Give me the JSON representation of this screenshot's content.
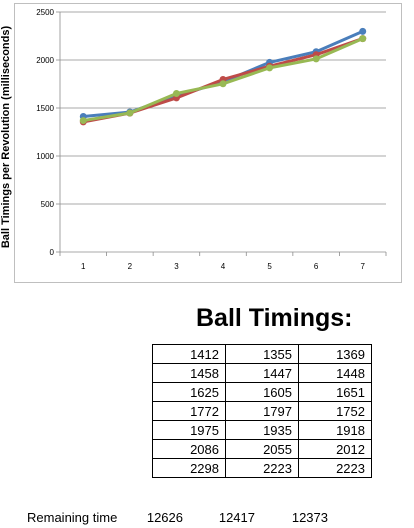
{
  "chart_data": {
    "type": "line",
    "title": "",
    "xlabel": "",
    "ylabel": "Ball Timings per Revolution (milliseconds)",
    "x": [
      1,
      2,
      3,
      4,
      5,
      6,
      7
    ],
    "ylim": [
      0,
      2500
    ],
    "yticks": [
      0,
      500,
      1000,
      1500,
      2000,
      2500
    ],
    "grid": "horizontal",
    "legend": "none",
    "series": [
      {
        "color": "#4a7ebb",
        "values": [
          1412,
          1458,
          1625,
          1772,
          1975,
          2086,
          2298
        ]
      },
      {
        "color": "#be4b48",
        "values": [
          1355,
          1447,
          1605,
          1797,
          1935,
          2055,
          2223
        ]
      },
      {
        "color": "#98b954",
        "values": [
          1369,
          1448,
          1651,
          1752,
          1918,
          2012,
          2223
        ]
      }
    ]
  },
  "table": {
    "title": "Ball Timings:",
    "rows": [
      [
        "1412",
        "1355",
        "1369"
      ],
      [
        "1458",
        "1447",
        "1448"
      ],
      [
        "1625",
        "1605",
        "1651"
      ],
      [
        "1772",
        "1797",
        "1752"
      ],
      [
        "1975",
        "1935",
        "1918"
      ],
      [
        "2086",
        "2055",
        "2012"
      ],
      [
        "2298",
        "2223",
        "2223"
      ]
    ]
  },
  "remaining": {
    "label": "Remaining time",
    "values": [
      "12626",
      "12417",
      "12373"
    ]
  }
}
